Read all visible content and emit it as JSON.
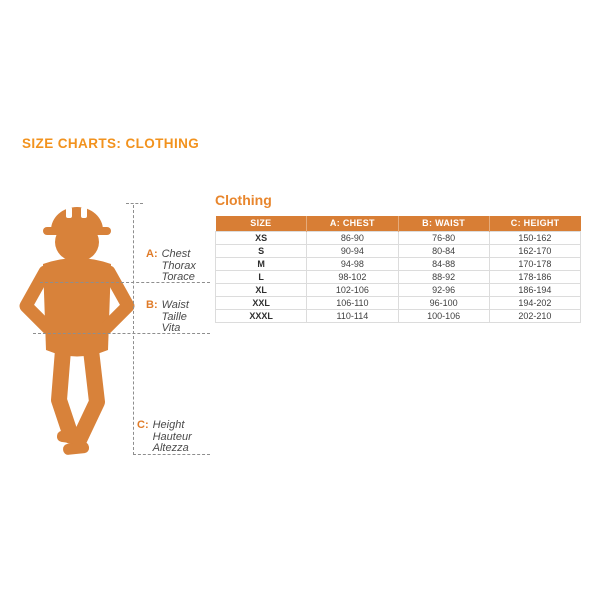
{
  "page": {
    "title": "SIZE CHARTS: CLOTHING"
  },
  "section": {
    "heading": "Clothing"
  },
  "diagram": {
    "icon": "construction-worker-silhouette",
    "labels": [
      {
        "letter": "A:",
        "lines": [
          "Chest",
          "Thorax",
          "Torace"
        ]
      },
      {
        "letter": "B:",
        "lines": [
          "Waist",
          "Taille",
          "Vita"
        ]
      },
      {
        "letter": "C:",
        "lines": [
          "Height",
          "Hauteur",
          "Altezza"
        ]
      }
    ]
  },
  "table": {
    "columns": [
      "SIZE",
      "A: CHEST",
      "B: WAIST",
      "C: HEIGHT"
    ],
    "rows": [
      [
        "XS",
        "86-90",
        "76-80",
        "150-162"
      ],
      [
        "S",
        "90-94",
        "80-84",
        "162-170"
      ],
      [
        "M",
        "94-98",
        "84-88",
        "170-178"
      ],
      [
        "L",
        "98-102",
        "88-92",
        "178-186"
      ],
      [
        "XL",
        "102-106",
        "92-96",
        "186-194"
      ],
      [
        "XXL",
        "106-110",
        "96-100",
        "194-202"
      ],
      [
        "XXXL",
        "110-114",
        "100-106",
        "202-210"
      ]
    ]
  },
  "colors": {
    "title_orange": "#F2921D",
    "heading_orange": "#E8862D",
    "figure_orange": "#D8823A",
    "table_header_bg": "#D87E35",
    "table_header_text": "#FFFFFF",
    "body_text": "#3F3F3F",
    "label_text": "#4A4A4A",
    "guide_gray": "#8E8E8E"
  }
}
